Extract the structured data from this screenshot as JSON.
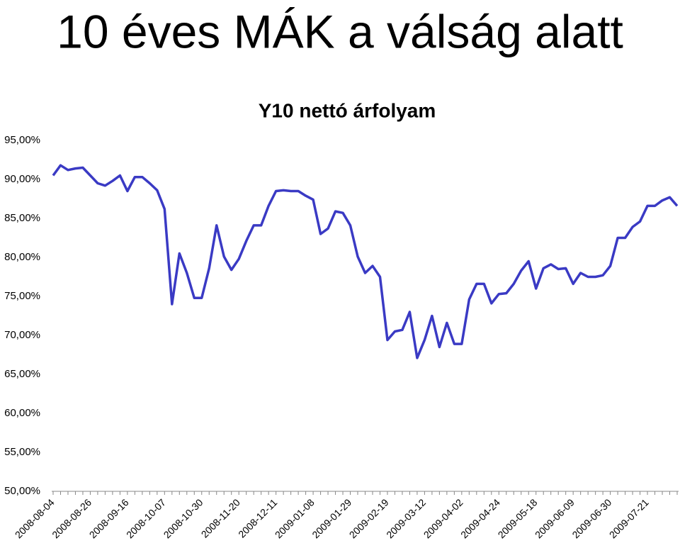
{
  "page_title": "10 éves MÁK a válság alatt",
  "chart_data": {
    "type": "line",
    "title": "Y10 nettó árfolyam",
    "categories": [
      "2008-08-04",
      null,
      null,
      null,
      null,
      "2008-08-26",
      null,
      null,
      null,
      null,
      "2008-09-16",
      null,
      null,
      null,
      null,
      "2008-10-07",
      null,
      null,
      null,
      null,
      "2008-10-30",
      null,
      null,
      null,
      null,
      "2008-11-20",
      null,
      null,
      null,
      null,
      "2008-12-11",
      null,
      null,
      null,
      null,
      "2009-01-08",
      null,
      null,
      null,
      null,
      "2009-01-29",
      null,
      null,
      null,
      null,
      "2009-02-19",
      null,
      null,
      null,
      null,
      "2009-03-12",
      null,
      null,
      null,
      null,
      "2009-04-02",
      null,
      null,
      null,
      null,
      "2009-04-24",
      null,
      null,
      null,
      null,
      "2009-05-18",
      null,
      null,
      null,
      null,
      "2009-06-09",
      null,
      null,
      null,
      null,
      "2009-06-30",
      null,
      null,
      null,
      null,
      "2009-07-21",
      null,
      null,
      null,
      null
    ],
    "series": [
      {
        "name": "Y10",
        "color": "#3a3ac4",
        "values": [
          90.5,
          91.8,
          91.2,
          91.4,
          91.5,
          90.5,
          89.5,
          89.2,
          89.8,
          90.5,
          88.5,
          90.3,
          90.3,
          89.5,
          88.6,
          86.2,
          74,
          80.5,
          78,
          74.8,
          74.8,
          78.6,
          84.1,
          80.1,
          78.4,
          79.8,
          82.1,
          84.1,
          84.1,
          86.6,
          88.5,
          88.6,
          88.5,
          88.5,
          87.9,
          87.4,
          83,
          83.7,
          85.9,
          85.7,
          84.1,
          80.1,
          78,
          78.9,
          77.5,
          69.4,
          70.5,
          70.7,
          73,
          67.1,
          69.4,
          72.5,
          68.5,
          71.6,
          68.9,
          68.9,
          74.6,
          76.6,
          76.6,
          74.1,
          75.3,
          75.4,
          76.6,
          78.3,
          79.5,
          76,
          78.6,
          79.1,
          78.5,
          78.6,
          76.6,
          78,
          77.5,
          77.5,
          77.7,
          78.9,
          82.5,
          82.5,
          83.9,
          84.6,
          86.6,
          86.6,
          87.3,
          87.7,
          86.6
        ]
      }
    ],
    "ylim": [
      50,
      95
    ],
    "yticks": [
      {
        "value": 50,
        "label": "50,00%"
      },
      {
        "value": 55,
        "label": "55,00%"
      },
      {
        "value": 60,
        "label": "60,00%"
      },
      {
        "value": 65,
        "label": "65,00%"
      },
      {
        "value": 70,
        "label": "70,00%"
      },
      {
        "value": 75,
        "label": "75,00%"
      },
      {
        "value": 80,
        "label": "80,00%"
      },
      {
        "value": 85,
        "label": "85,00%"
      },
      {
        "value": 90,
        "label": "90,00%"
      },
      {
        "value": 95,
        "label": "95,00%"
      }
    ],
    "grid": false
  }
}
